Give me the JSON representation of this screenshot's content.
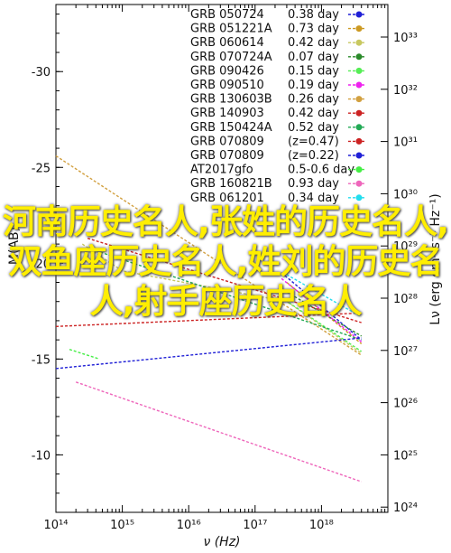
{
  "chart_data": {
    "type": "line",
    "title": "",
    "xlabel": "ν (Hz)",
    "ylabel_left": "M(AB)",
    "ylabel_right": "Lν (erg cm² s⁻¹ Hz⁻¹)",
    "xscale": "log",
    "xlim": [
      100000000000000.0,
      1e+19
    ],
    "ylim_left": [
      -7,
      -33.5
    ],
    "x_ticks": [
      "10¹⁴",
      "10¹⁵",
      "10¹⁶",
      "10¹⁷",
      "10¹⁸"
    ],
    "y_ticks_left": [
      "-30",
      "-25",
      "-20",
      "-15",
      "-10"
    ],
    "y_ticks_right": [
      "10³³",
      "10³²",
      "10³¹",
      "10³⁰",
      "10²⁹",
      "10²⁸",
      "10²⁷",
      "10²⁶",
      "10²⁵",
      "10²⁴"
    ],
    "legend_position": "top-right",
    "series": [
      {
        "name": "GRB 050724",
        "annotation": "0.38 day",
        "color": "#1f1fd6",
        "x": [
          2.5e+17,
          4e+18
        ],
        "y": [
          -19.5,
          -16.0
        ]
      },
      {
        "name": "GRB 051221A",
        "annotation": "0.73 day",
        "color": "#cc9922",
        "x": [
          3e+17,
          4e+18
        ],
        "y": [
          -19.0,
          -15.8
        ]
      },
      {
        "name": "GRB 060614",
        "annotation": "0.42 day",
        "color": "#c8c860",
        "x": [
          250000000000000.0,
          1000000000000000.0,
          3e+17,
          4e+18
        ],
        "y": [
          -21.0,
          -19.6,
          -18.0,
          -15.3
        ]
      },
      {
        "name": "GRB 070724A",
        "annotation": "0.07 day",
        "color": "#2a8a2a",
        "x": [
          3e+17,
          4e+18
        ],
        "y": [
          -18.5,
          -16.2
        ]
      },
      {
        "name": "GRB 090426",
        "annotation": "0.15 day",
        "color": "#55ee55",
        "x": [
          2.5e+17,
          4e+18
        ],
        "y": [
          -18.2,
          -15.4
        ]
      },
      {
        "name": "GRB 090510",
        "annotation": "0.19 day",
        "color": "#ee22ee",
        "x": [
          2.5e+17,
          4e+18
        ],
        "y": [
          -19.2,
          -15.9
        ]
      },
      {
        "name": "GRB 130603B",
        "annotation": "0.26 day",
        "color": "#d2a040",
        "x": [
          100000000000000.0,
          4e+18
        ],
        "y": [
          -25.6,
          -15.2
        ]
      },
      {
        "name": "GRB 140903",
        "annotation": "0.42 day",
        "color": "#cc2222",
        "x": [
          100000000000000.0,
          4e+18
        ],
        "y": [
          -16.7,
          -17.4
        ]
      },
      {
        "name": "GRB 150424A",
        "annotation": "0.52 day",
        "color": "#22aa55",
        "x": [
          300000000000000.0,
          4e+18
        ],
        "y": [
          -20.8,
          -16.0
        ]
      },
      {
        "name": "GRB 070809",
        "annotation": "(z=0.47)",
        "color": "#cc2222",
        "x": [
          300000000000000.0,
          4e+18
        ],
        "y": [
          -21.3,
          -16.9
        ]
      },
      {
        "name": "GRB 070809",
        "annotation": "(z=0.22)",
        "color": "#1f1fd6",
        "x": [
          100000000000000.0,
          4e+18
        ],
        "y": [
          -14.5,
          -16.1
        ]
      },
      {
        "name": "AT2017gfo",
        "annotation": "0.5-0.6 day",
        "color": "#44ee44",
        "x": [
          160000000000000.0,
          450000000000000.0
        ],
        "y": [
          -15.5,
          -15.0
        ]
      },
      {
        "name": "GRB 160821B",
        "annotation": "0.93 day",
        "color": "#ee66bb",
        "x": [
          200000000000000.0,
          4e+18
        ],
        "y": [
          -13.8,
          -8.6
        ]
      },
      {
        "name": "GRB 061201",
        "annotation": "0.34 day",
        "color": "#22ddee",
        "x": [
          3e+17,
          4e+18
        ],
        "y": [
          -19.4,
          -17.2
        ]
      }
    ]
  },
  "watermark": {
    "text": "河南历史名人,张姓的历史名人,双鱼座历史名人,姓刘的历史名人,射手座历史名人"
  }
}
